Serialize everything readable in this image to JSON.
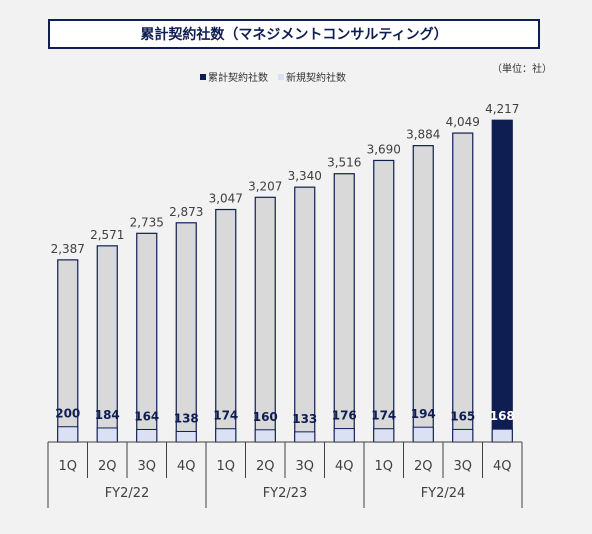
{
  "title": "累計契約社数（マネジメントコンサルティング）",
  "unit": "（単位：社）",
  "legend": [
    {
      "label": "累計契約社数",
      "color": "#0f1e52"
    },
    {
      "label": "新規契約社数",
      "color": "#dbe0f5"
    }
  ],
  "colors": {
    "cumulative": "#d9d9d9",
    "cumulative_highlight": "#0f1e52",
    "new": "#dbe0f5",
    "new_highlight": "#dbe0f5",
    "outline": "#0f1e52",
    "new_label": "#0f1e52",
    "new_label_highlight": "#ffffff"
  },
  "chart_data": {
    "type": "bar",
    "categories": [
      "1Q",
      "2Q",
      "3Q",
      "4Q",
      "1Q",
      "2Q",
      "3Q",
      "4Q",
      "1Q",
      "2Q",
      "3Q",
      "4Q"
    ],
    "groups": [
      {
        "label": "FY2/22",
        "span": 4
      },
      {
        "label": "FY2/23",
        "span": 4
      },
      {
        "label": "FY2/24",
        "span": 4
      }
    ],
    "series": [
      {
        "name": "累計契約社数",
        "values": [
          2387,
          2571,
          2735,
          2873,
          3047,
          3207,
          3340,
          3516,
          3690,
          3884,
          4049,
          4217
        ]
      },
      {
        "name": "新規契約社数",
        "values": [
          200,
          184,
          164,
          138,
          174,
          160,
          133,
          176,
          174,
          194,
          165,
          168
        ]
      }
    ],
    "cumulative_labels": [
      "2,387",
      "2,571",
      "2,735",
      "2,873",
      "3,047",
      "3,207",
      "3,340",
      "3,516",
      "3,690",
      "3,884",
      "4,049",
      "4,217"
    ],
    "new_labels": [
      "200",
      "184",
      "164",
      "138",
      "174",
      "160",
      "133",
      "176",
      "174",
      "194",
      "165",
      "168"
    ],
    "highlight_index": 11,
    "ylim": [
      0,
      4400
    ],
    "legend_position": "top"
  }
}
